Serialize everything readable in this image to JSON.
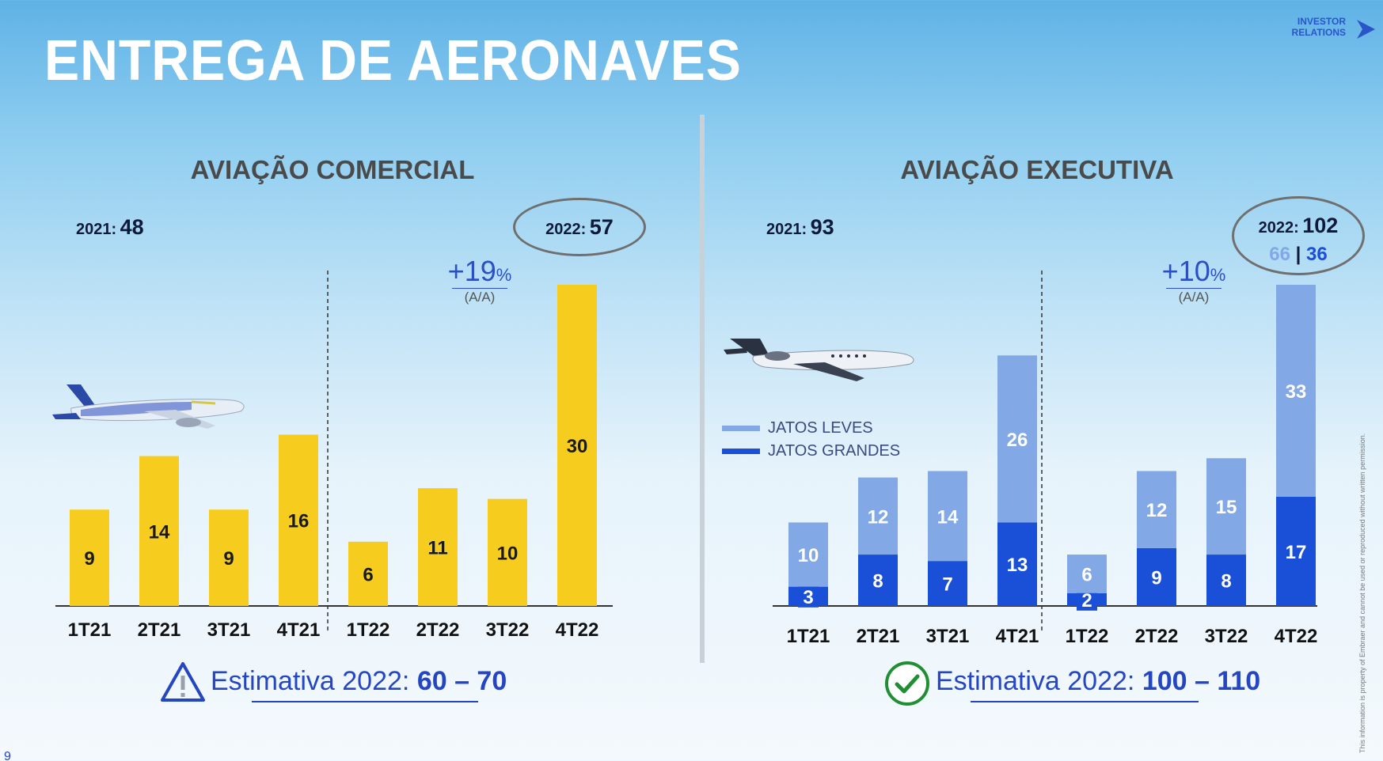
{
  "header": {
    "title": "ENTREGA DE AERONAVES",
    "logo_text": [
      "INVESTOR",
      "RELATIONS"
    ]
  },
  "colors": {
    "commercial_bar": "#f6cd1e",
    "light_jets": "#82a8e6",
    "large_jets": "#1a4fd8",
    "accent_blue": "#2446c2"
  },
  "commercial": {
    "section_title": "AVIAÇÃO COMERCIAL",
    "summary_2021": {
      "label": "2021:",
      "value": "48"
    },
    "summary_2022": {
      "label": "2022:",
      "value": "57"
    },
    "growth": {
      "value": "+19",
      "unit": "%",
      "sub": "(A/A)"
    },
    "estimate": {
      "label": "Estimativa 2022:",
      "value": "60 – 70"
    },
    "icon": "warning-triangle-icon"
  },
  "executive": {
    "section_title": "AVIAÇÃO EXECUTIVA",
    "summary_2021": {
      "label": "2021:",
      "value": "93"
    },
    "summary_2022": {
      "label": "2022:",
      "value": "102",
      "light": "66",
      "sep": "|",
      "large": "36"
    },
    "growth": {
      "value": "+10",
      "unit": "%",
      "sub": "(A/A)"
    },
    "estimate": {
      "label": "Estimativa 2022:",
      "value": "100 – 110"
    },
    "icon": "check-circle-icon",
    "legend": {
      "light": "JATOS LEVES",
      "large": "JATOS GRANDES"
    }
  },
  "chart_data": [
    {
      "type": "bar",
      "title": "AVIAÇÃO COMERCIAL",
      "categories": [
        "1T21",
        "2T21",
        "3T21",
        "4T21",
        "1T22",
        "2T22",
        "3T22",
        "4T22"
      ],
      "values": [
        9,
        14,
        9,
        16,
        6,
        11,
        10,
        30
      ],
      "ylim": [
        0,
        30
      ],
      "grid": false
    },
    {
      "type": "bar",
      "stacked": true,
      "title": "AVIAÇÃO EXECUTIVA",
      "categories": [
        "1T21",
        "2T21",
        "3T21",
        "4T21",
        "1T22",
        "2T22",
        "3T22",
        "4T22"
      ],
      "series": [
        {
          "name": "JATOS GRANDES",
          "values": [
            3,
            8,
            7,
            13,
            2,
            9,
            8,
            17
          ]
        },
        {
          "name": "JATOS LEVES",
          "values": [
            10,
            12,
            14,
            26,
            6,
            12,
            15,
            33
          ]
        }
      ],
      "ylim": [
        0,
        50
      ],
      "grid": false,
      "legend": "left"
    }
  ],
  "footer": {
    "disclaimer": "This information is property of Embraer and cannot be used or reproduced without written permission.",
    "page_number": "9"
  }
}
